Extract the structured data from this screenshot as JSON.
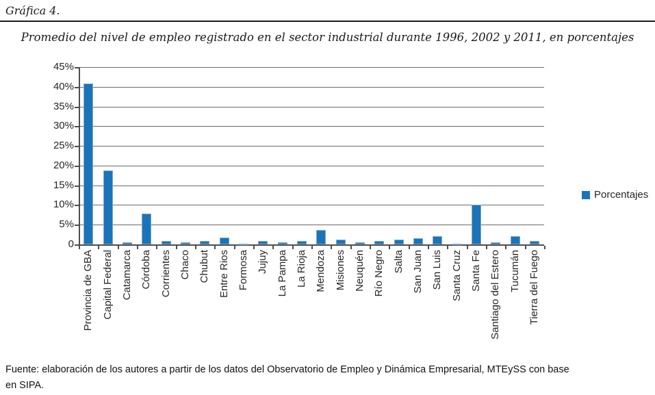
{
  "header": {
    "figure_label": "Gráfica 4."
  },
  "title": "Promedio del nivel de empleo registrado en el sector industrial durante 1996, 2002 y 2011, en porcentajes",
  "legend": {
    "label": "Porcentajes"
  },
  "footer": {
    "line1": "Fuente: elaboración de los autores a partir de los datos del Observatorio de Empleo y Dinámica Empresarial, MTEySS con base",
    "line2": "en SIPA."
  },
  "colors": {
    "bar": "#1B74B8",
    "bar_edge": "#7fa8d0",
    "grid": "#6a6a6a",
    "axis": "#4d4d4d",
    "text": "#262626"
  },
  "chart_data": {
    "type": "bar",
    "title": "Promedio del nivel de empleo registrado en el sector industrial durante 1996, 2002 y 2011, en porcentajes",
    "categories": [
      "Provincia de GBA",
      "Capital Federal",
      "Catamarca",
      "Córdoba",
      "Corrientes",
      "Chaco",
      "Chubut",
      "Entre Rios",
      "Formosa",
      "Jujuy",
      "La Pampa",
      "La Rioja",
      "Mendoza",
      "Misiones",
      "Neuquén",
      "Río Negro",
      "Salta",
      "San Juan",
      "San Luis",
      "Santa Cruz",
      "Santa Fe",
      "Santiago del Estero",
      "Tucumán",
      "Tierra del Fuego"
    ],
    "series": [
      {
        "name": "Porcentajes",
        "values": [
          40.8,
          18.8,
          0.6,
          7.8,
          0.8,
          0.6,
          0.9,
          1.7,
          0.2,
          0.9,
          0.5,
          0.9,
          3.7,
          1.3,
          0.5,
          0.8,
          1.3,
          1.5,
          2.0,
          0.2,
          10.0,
          0.5,
          2.0,
          0.8
        ]
      }
    ],
    "xlabel": "",
    "ylabel": "",
    "ylim": [
      0,
      45
    ],
    "ytick_step": 5,
    "ytick_format": "percent",
    "ytick_zero_label": "0",
    "grid": true,
    "legend_position": "right",
    "bar_color": "#1B74B8"
  }
}
